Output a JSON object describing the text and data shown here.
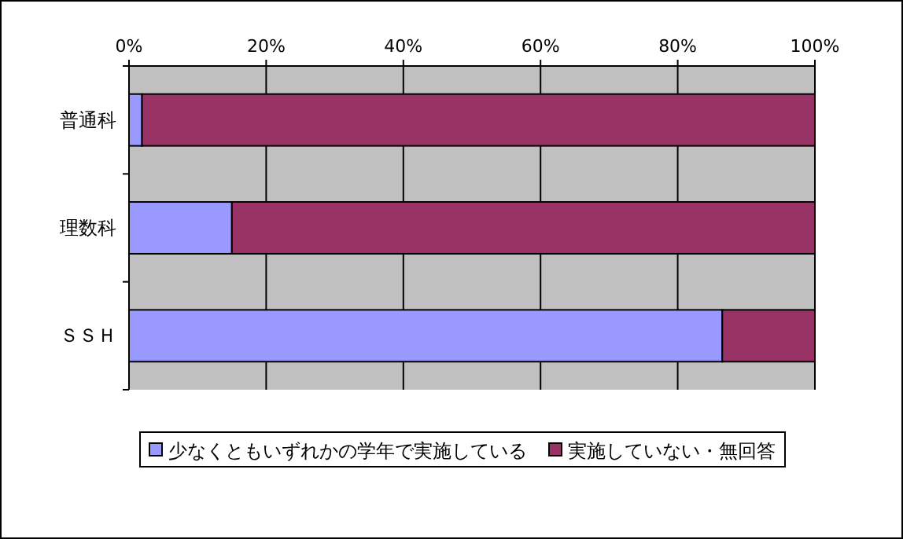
{
  "chart_data": {
    "type": "bar",
    "orientation": "horizontal",
    "stacked": true,
    "categories": [
      "普通科",
      "理数科",
      "ＳＳＨ"
    ],
    "series": [
      {
        "name": "少なくともいずれかの学年で実施している",
        "color": "#9999ff",
        "values": [
          1.9,
          15,
          86.5
        ]
      },
      {
        "name": "実施していない・無回答",
        "color": "#993366",
        "values": [
          98.1,
          85,
          13.5
        ]
      }
    ],
    "xlim": [
      0,
      100
    ],
    "xticks": [
      {
        "value": 0,
        "label": "0%"
      },
      {
        "value": 20,
        "label": "20%"
      },
      {
        "value": 40,
        "label": "40%"
      },
      {
        "value": 60,
        "label": "60%"
      },
      {
        "value": 80,
        "label": "80%"
      },
      {
        "value": 100,
        "label": "100%"
      }
    ],
    "grid": "x",
    "legend": "bottom"
  }
}
